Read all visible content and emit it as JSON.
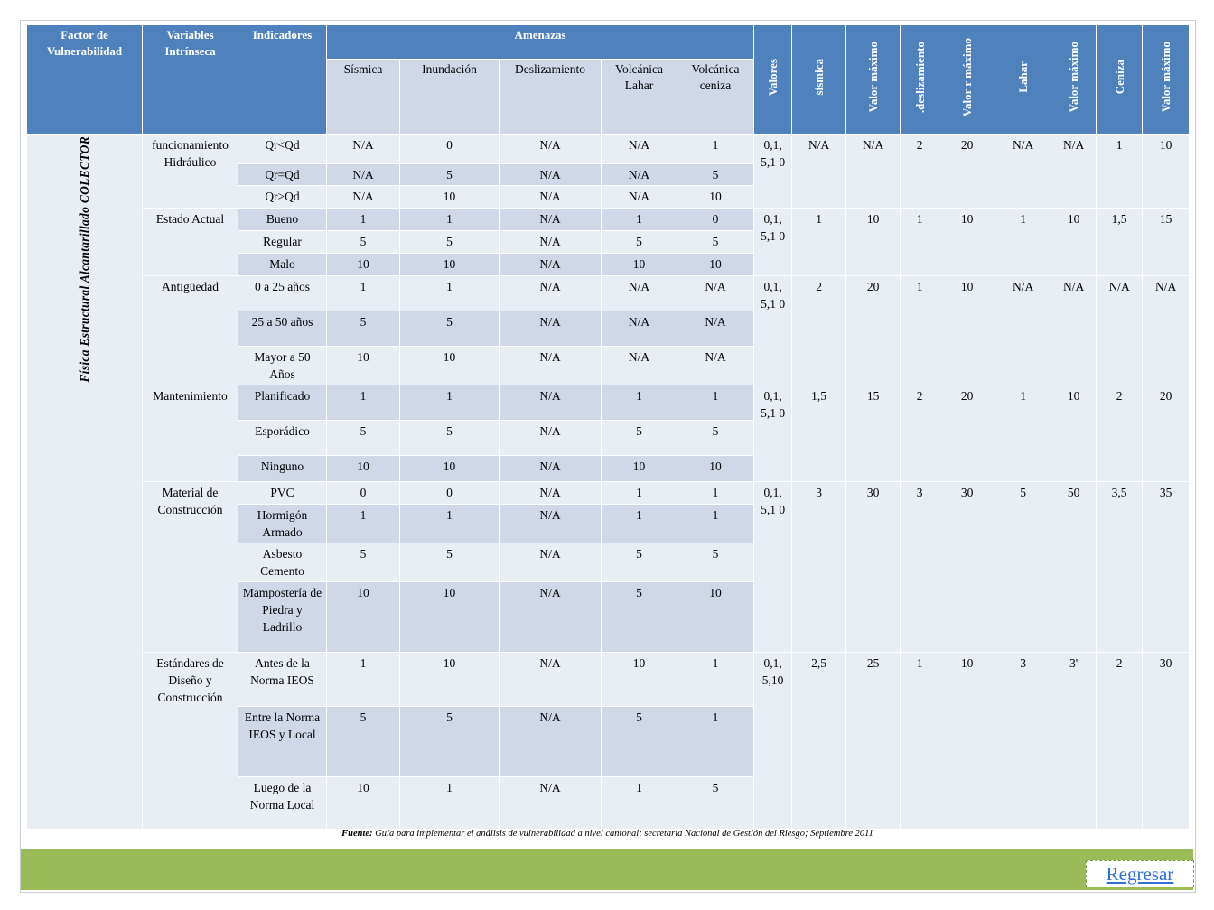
{
  "headers": {
    "factor": "Factor de Vulnerabilidad",
    "variables": "Variables Intrínseca",
    "indicadores": "Indicadores",
    "amenazas": "Amenazas",
    "sub": [
      "Sísmica",
      "Inundación",
      "Deslizamiento",
      "Volcánica Lahar",
      "Volcánica ceniza"
    ],
    "right": [
      "Valores",
      "sísmica",
      "Valor máximo",
      ".deslizamiento",
      "Valor r máximo",
      "Lahar",
      "Valor máximo",
      "Ceniza",
      "Valor máximo"
    ]
  },
  "factor_label": "Física Estructural Alcantarillado COLECTOR",
  "groups": [
    {
      "variable": "funcionamiento Hidráulico",
      "valores": "0,1, 5,1 0",
      "right": [
        "N/A",
        "N/A",
        "2",
        "20",
        "N/A",
        "N/A",
        "1",
        "10"
      ],
      "rows": [
        {
          "indicador": "Qr<Qd",
          "v": [
            "N/A",
            "0",
            "N/A",
            "N/A",
            "1"
          ]
        },
        {
          "indicador": "Qr=Qd",
          "v": [
            "N/A",
            "5",
            "N/A",
            "N/A",
            "5"
          ]
        },
        {
          "indicador": "Qr>Qd",
          "v": [
            "N/A",
            "10",
            "N/A",
            "N/A",
            "10"
          ]
        }
      ]
    },
    {
      "variable": "Estado Actual",
      "valores": "0,1, 5,1 0",
      "right": [
        "1",
        "10",
        "1",
        "10",
        "1",
        "10",
        "1,5",
        "15"
      ],
      "rows": [
        {
          "indicador": "Bueno",
          "v": [
            "1",
            "1",
            "N/A",
            "1",
            "0"
          ]
        },
        {
          "indicador": "Regular",
          "v": [
            "5",
            "5",
            "N/A",
            "5",
            "5"
          ]
        },
        {
          "indicador": "Malo",
          "v": [
            "10",
            "10",
            "N/A",
            "10",
            "10"
          ]
        }
      ]
    },
    {
      "variable": "Antigüedad",
      "valores": "0,1, 5,1 0",
      "right": [
        "2",
        "20",
        "1",
        "10",
        "N/A",
        "N/A",
        "N/A",
        "N/A"
      ],
      "rows": [
        {
          "indicador": "0 a 25 años",
          "v": [
            "1",
            "1",
            "N/A",
            "N/A",
            "N/A"
          ]
        },
        {
          "indicador": "25 a 50 años",
          "v": [
            "5",
            "5",
            "N/A",
            "N/A",
            "N/A"
          ]
        },
        {
          "indicador": "Mayor a 50 Años",
          "v": [
            "10",
            "10",
            "N/A",
            "N/A",
            "N/A"
          ]
        }
      ]
    },
    {
      "variable": "Mantenimiento",
      "valores": "0,1, 5,1 0",
      "right": [
        "1,5",
        "15",
        "2",
        "20",
        "1",
        "10",
        "2",
        "20"
      ],
      "rows": [
        {
          "indicador": "Planificado",
          "v": [
            "1",
            "1",
            "N/A",
            "1",
            "1"
          ]
        },
        {
          "indicador": "Esporádico",
          "v": [
            "5",
            "5",
            "N/A",
            "5",
            "5"
          ]
        },
        {
          "indicador": "Ninguno",
          "v": [
            "10",
            "10",
            "N/A",
            "10",
            "10"
          ]
        }
      ]
    },
    {
      "variable": "Material de Construcción",
      "valores": "0,1, 5,1 0",
      "right": [
        "3",
        "30",
        "3",
        "30",
        "5",
        "50",
        "3,5",
        "35"
      ],
      "rows": [
        {
          "indicador": "PVC",
          "v": [
            "0",
            "0",
            "N/A",
            "1",
            "1"
          ]
        },
        {
          "indicador": "Hormigón Armado",
          "v": [
            "1",
            "1",
            "N/A",
            "1",
            "1"
          ]
        },
        {
          "indicador": "Asbesto Cemento",
          "v": [
            "5",
            "5",
            "N/A",
            "5",
            "5"
          ]
        },
        {
          "indicador": "Mampostería de Piedra y Ladrillo",
          "v": [
            "10",
            "10",
            "N/A",
            "5",
            "10"
          ]
        }
      ]
    },
    {
      "variable": "Estándares de Diseño y Construcción",
      "valores": "0,1, 5,10",
      "right": [
        "2,5",
        "25",
        "1",
        "10",
        "3",
        "3'",
        "2",
        "30"
      ],
      "rows": [
        {
          "indicador": "Antes de la Norma IEOS",
          "v": [
            "1",
            "10",
            "N/A",
            "10",
            "1"
          ]
        },
        {
          "indicador": "Entre la Norma IEOS y Local",
          "v": [
            "5",
            "5",
            "N/A",
            "5",
            "1"
          ]
        },
        {
          "indicador": "Luego de la Norma Local",
          "v": [
            "10",
            "1",
            "N/A",
            "1",
            "5"
          ]
        }
      ]
    }
  ],
  "source": {
    "label": "Fuente:",
    "text": "Guía para implementar el análisis de vulnerabilidad a nivel cantonal; secretaria Nacional de Gestión del Riesgo; Septiembre 2011"
  },
  "back_button": "Regresar",
  "colors": {
    "header": "#4f81bd",
    "row_light": "#e9edf4",
    "row_dark": "#d0d8e8",
    "footer": "#9bbb59",
    "link": "#2f6fd6"
  }
}
